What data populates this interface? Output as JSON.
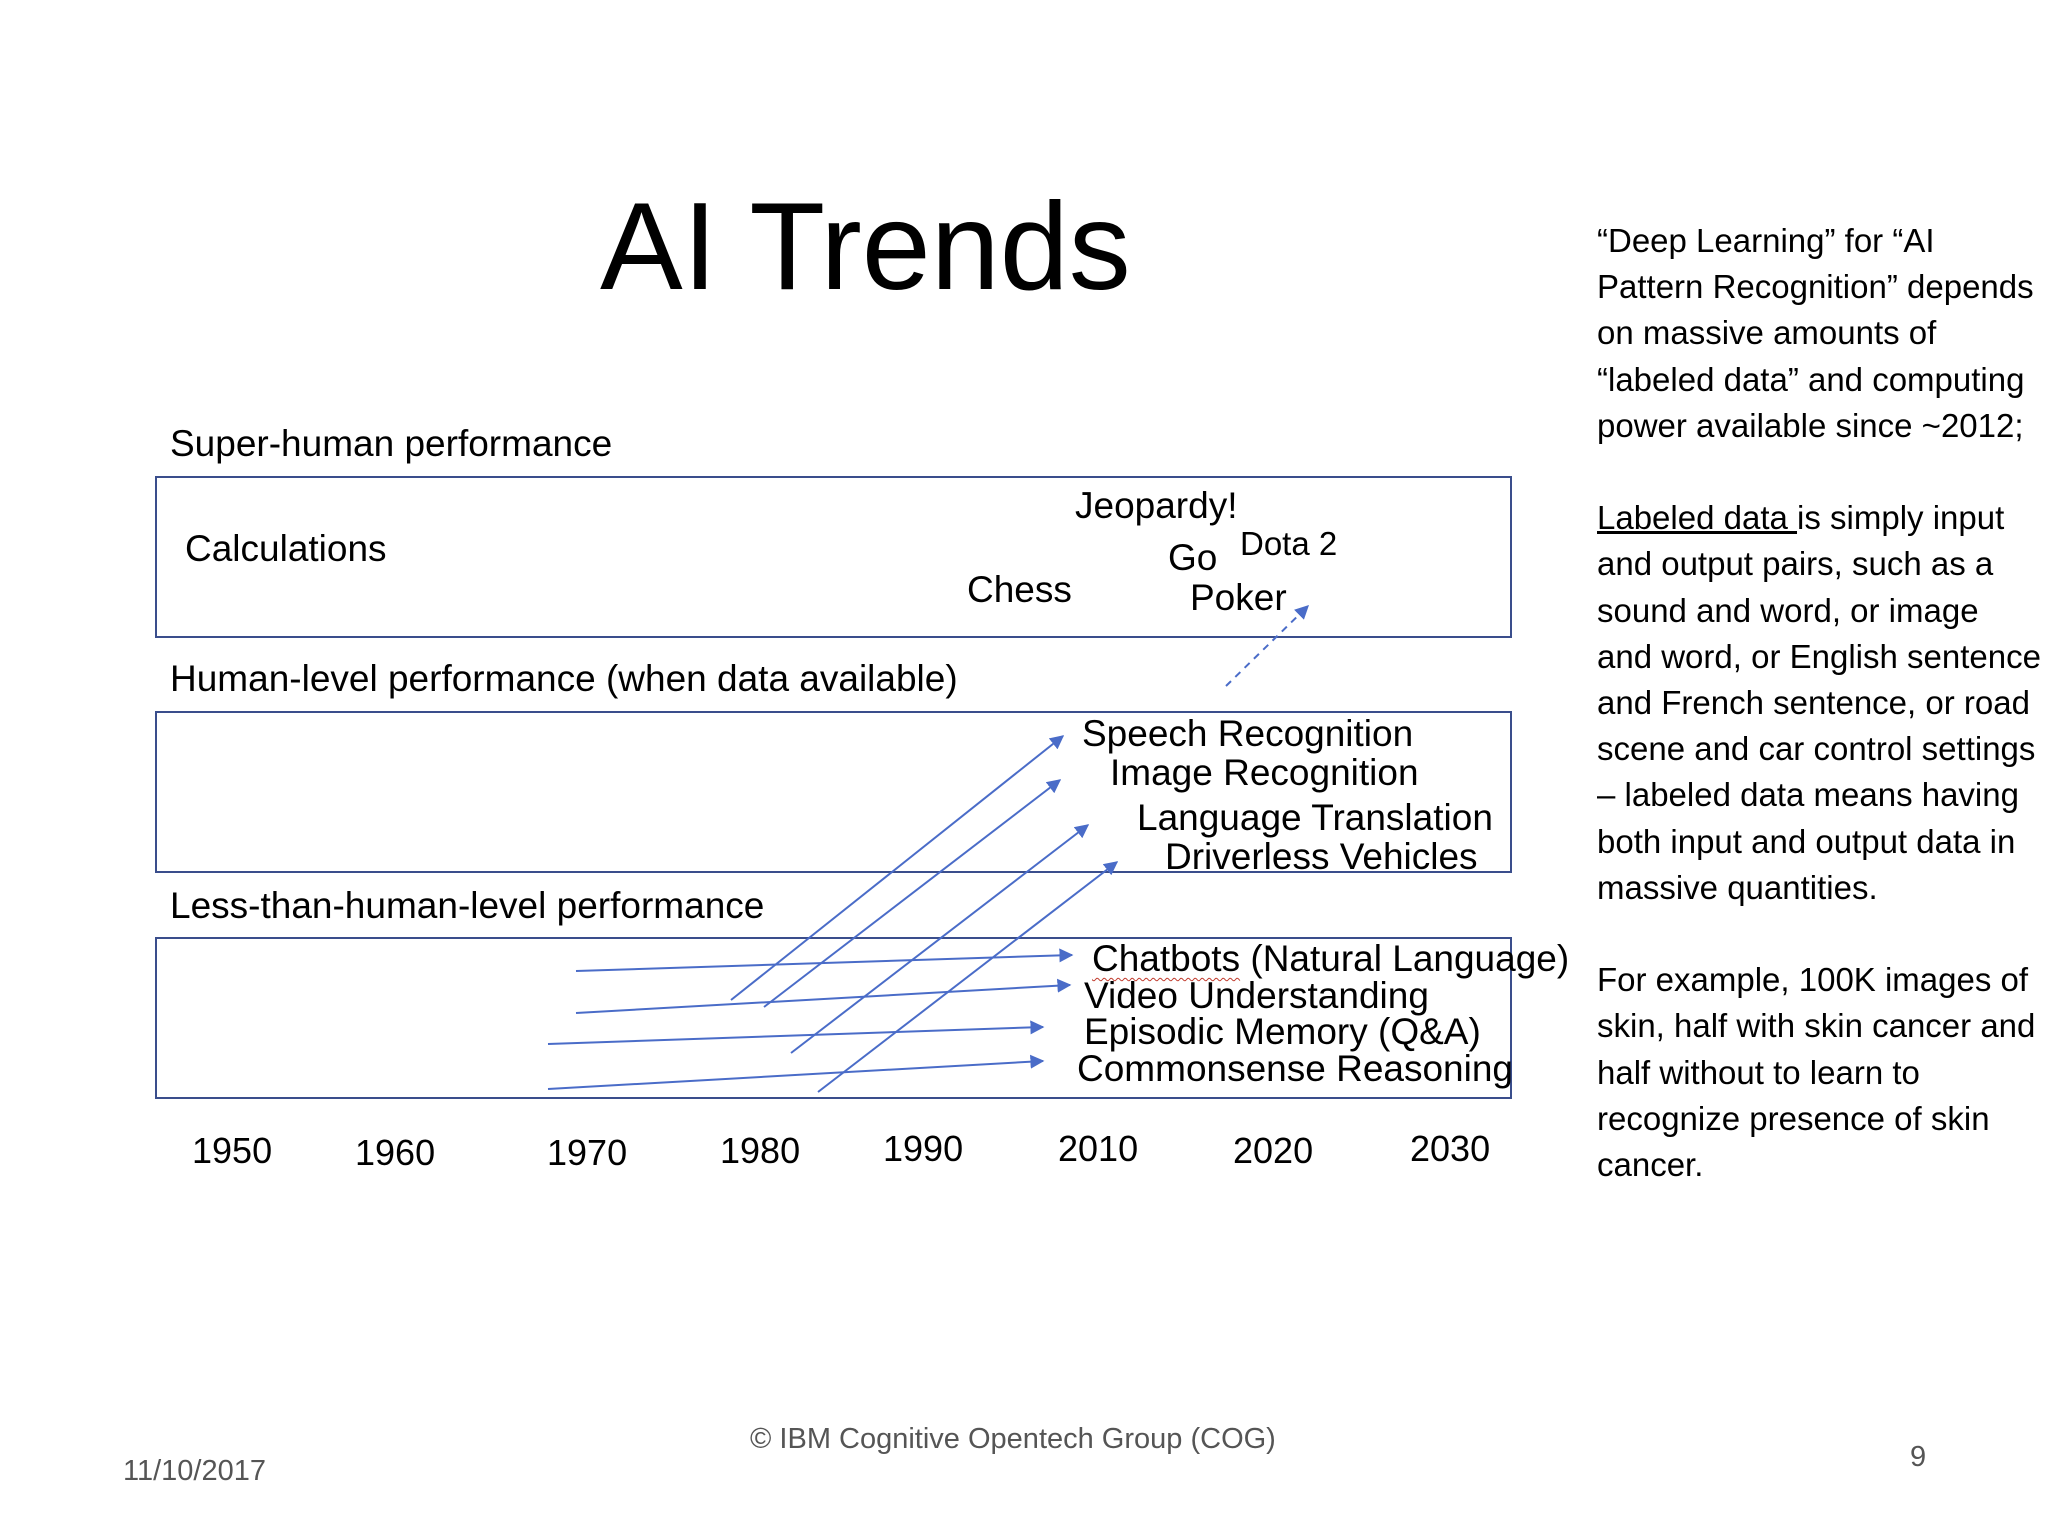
{
  "title": "AI Trends",
  "bands": [
    {
      "label": "Super-human performance"
    },
    {
      "label": "Human-level performance (when data available)"
    },
    {
      "label": "Less-than-human-level performance"
    }
  ],
  "super_human_items": {
    "calculations": "Calculations",
    "jeopardy": "Jeopardy!",
    "go": "Go",
    "dota": "Dota 2",
    "chess": "Chess",
    "poker": "Poker"
  },
  "human_level_items": {
    "speech": "Speech Recognition",
    "image": "Image Recognition",
    "translation": "Language Translation",
    "driverless": "Driverless Vehicles"
  },
  "less_than_human_items": {
    "chatbots_word": "Chatbots",
    "chatbots_rest": " (Natural Language)",
    "video": "Video Understanding",
    "episodic": "Episodic Memory (Q&A)",
    "commonsense": "Commonsense Reasoning"
  },
  "years": [
    "1950",
    "1960",
    "1970",
    "1980",
    "1990",
    "2010",
    "2020",
    "2030"
  ],
  "side_text": {
    "p1": "“Deep Learning” for “AI Pattern Recognition” depends on massive amounts of “labeled data” and computing power available since ~2012;",
    "p2_underlined": "Labeled data ",
    "p2_rest": "is simply input and output pairs, such as a sound and word, or image and word, or English sentence and French sentence, or road scene and car control settings  – labeled data means having both input and output data in massive quantities.",
    "p3": "For example, 100K images of skin, half with skin cancer and half without to learn to recognize presence of skin cancer."
  },
  "footer": {
    "copyright": "© IBM Cognitive Opentech Group (COG)",
    "date": "11/10/2017",
    "page_number": "9"
  },
  "colors": {
    "box_border": "#3a4e8c",
    "arrow": "#4a6cc8",
    "footer_text": "#555555"
  }
}
